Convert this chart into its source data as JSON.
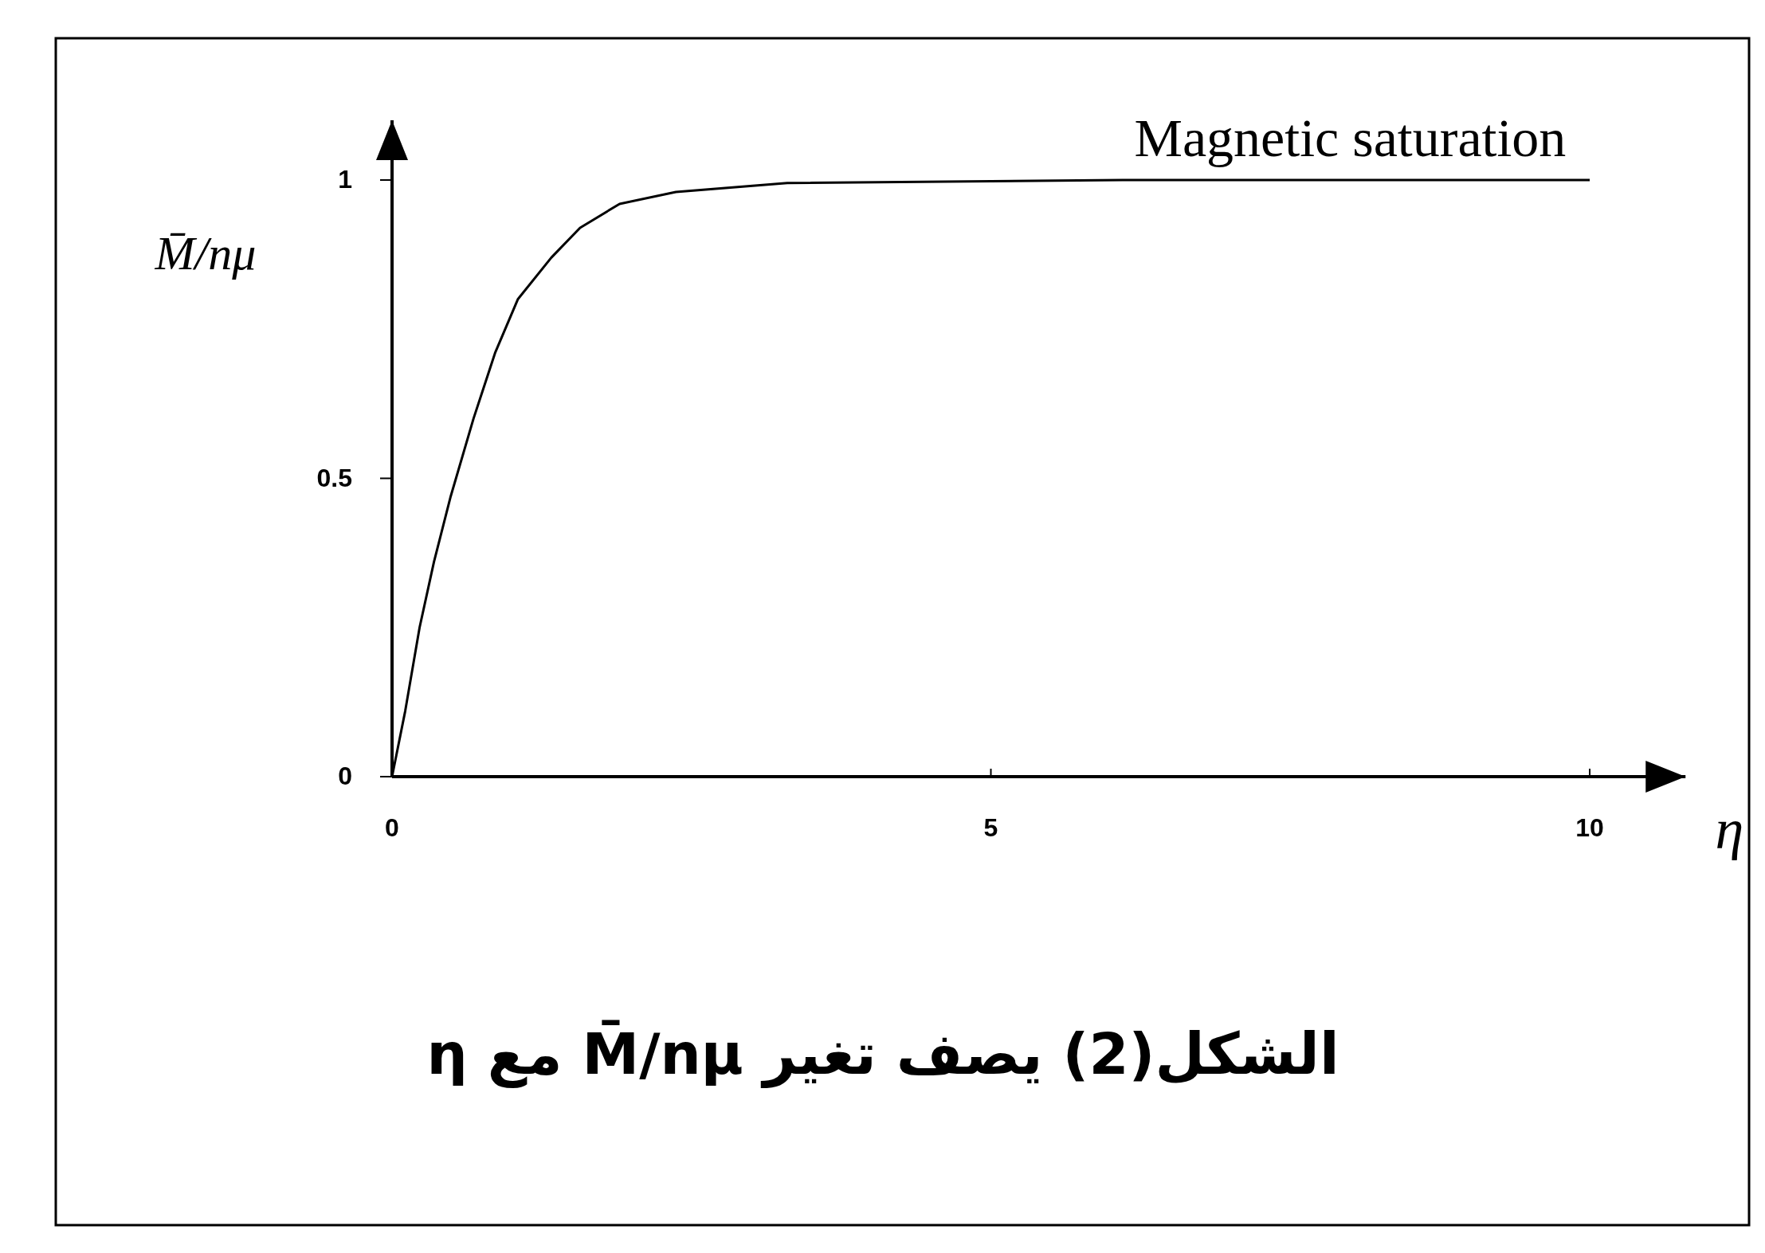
{
  "chart_data": {
    "type": "line",
    "title": "الشكل(2) يصف تغير M̄/nμ مع η",
    "xlabel": "η",
    "ylabel": "M̄/nμ",
    "xlim": [
      0,
      10.8
    ],
    "ylim": [
      0,
      1.1
    ],
    "xticks": [
      0,
      5,
      10
    ],
    "yticks": [
      0,
      0.5,
      1
    ],
    "series": [
      {
        "color": "#000000",
        "x": [
          0,
          0.11,
          0.23,
          0.35,
          0.49,
          0.68,
          0.86,
          1.05,
          1.33,
          1.57,
          1.9,
          2.37,
          3.3,
          6.1,
          10
        ],
        "values": [
          0,
          0.11,
          0.25,
          0.36,
          0.47,
          0.6,
          0.71,
          0.8,
          0.87,
          0.92,
          0.96,
          0.98,
          0.995,
          1,
          1
        ]
      }
    ],
    "annotations": [
      {
        "text": "Magnetic saturation",
        "x": 8,
        "y": 1
      }
    ],
    "grid": false,
    "marker": "none",
    "line_style": "solid"
  }
}
